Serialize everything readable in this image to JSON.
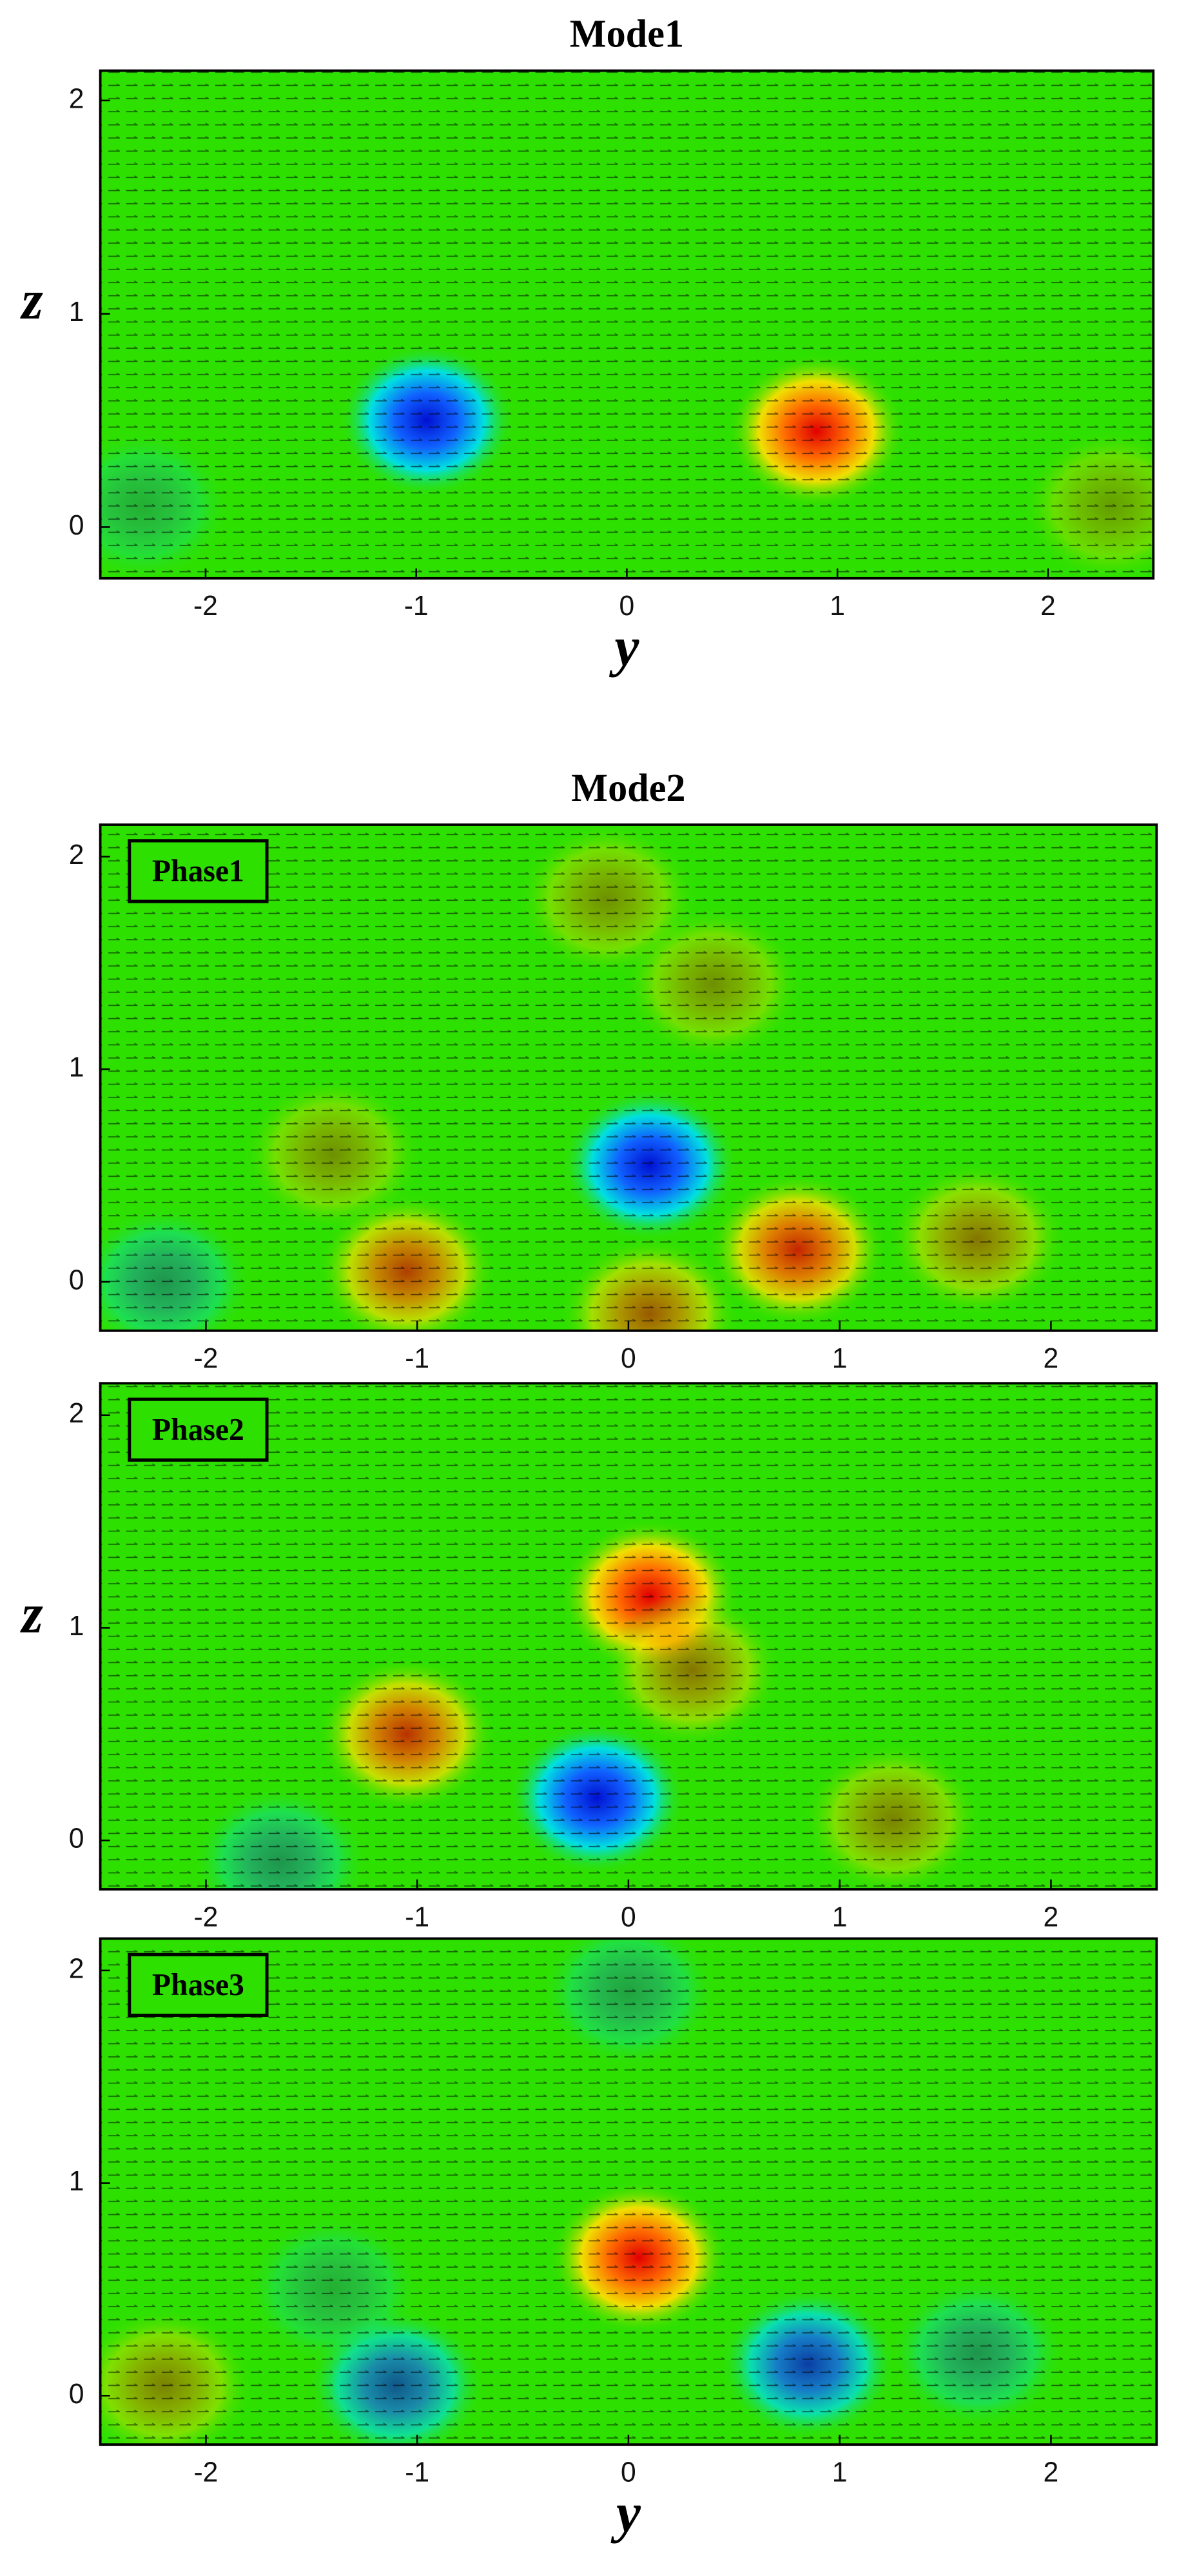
{
  "chart_data": [
    {
      "type": "contour",
      "title": "Mode1",
      "xlabel": "y",
      "ylabel": "z",
      "xlim": [
        -2.5,
        2.5
      ],
      "ylim": [
        -0.24,
        2.14
      ],
      "xticks": [
        -2,
        -1,
        0,
        1,
        2
      ],
      "yticks": [
        0,
        1,
        2
      ],
      "x": [
        -0.95,
        0.9,
        -2.3,
        2.3
      ],
      "y": [
        0.5,
        0.45,
        0.1,
        0.1
      ],
      "values": [
        -1,
        1,
        -0.2,
        0.25
      ]
    },
    {
      "type": "contour",
      "title": "Mode2",
      "annotation": "Phase1",
      "xlim": [
        -2.5,
        2.5
      ],
      "ylim": [
        -0.23,
        2.15
      ],
      "xticks": [
        -2,
        -1,
        0,
        1,
        2
      ],
      "yticks": [
        0,
        1,
        2
      ],
      "x": [
        0.1,
        -1.05,
        0.8,
        1.65,
        0.1,
        -0.1,
        -1.4,
        0.4,
        -2.2
      ],
      "y": [
        0.55,
        0.05,
        0.15,
        0.2,
        -0.15,
        1.8,
        0.6,
        1.4,
        0.0
      ],
      "values": [
        -1,
        0.6,
        0.7,
        0.4,
        0.5,
        0.3,
        0.3,
        0.3,
        -0.3
      ]
    },
    {
      "type": "contour",
      "ylabel": "z",
      "annotation": "Phase2",
      "xlim": [
        -2.5,
        2.5
      ],
      "ylim": [
        -0.23,
        2.15
      ],
      "xticks": [
        -2,
        -1,
        0,
        1,
        2
      ],
      "yticks": [
        0,
        1,
        2
      ],
      "x": [
        0.1,
        -1.05,
        -0.15,
        1.25,
        0.3,
        -1.65
      ],
      "y": [
        1.15,
        0.5,
        0.2,
        0.1,
        0.8,
        -0.1
      ],
      "values": [
        0.85,
        0.65,
        -0.9,
        0.35,
        0.4,
        -0.3
      ]
    },
    {
      "type": "contour",
      "xlabel": "y",
      "annotation": "Phase3",
      "xlim": [
        -2.5,
        2.5
      ],
      "ylim": [
        -0.23,
        2.15
      ],
      "xticks": [
        -2,
        -1,
        0,
        1,
        2
      ],
      "yticks": [
        0,
        1,
        2
      ],
      "x": [
        0.05,
        -1.1,
        0.85,
        1.65,
        -2.2,
        0.0,
        -1.4
      ],
      "y": [
        0.65,
        0.05,
        0.15,
        0.2,
        0.05,
        1.9,
        0.5
      ],
      "values": [
        1,
        -0.55,
        -0.65,
        -0.3,
        0.35,
        -0.25,
        -0.2
      ]
    }
  ]
}
